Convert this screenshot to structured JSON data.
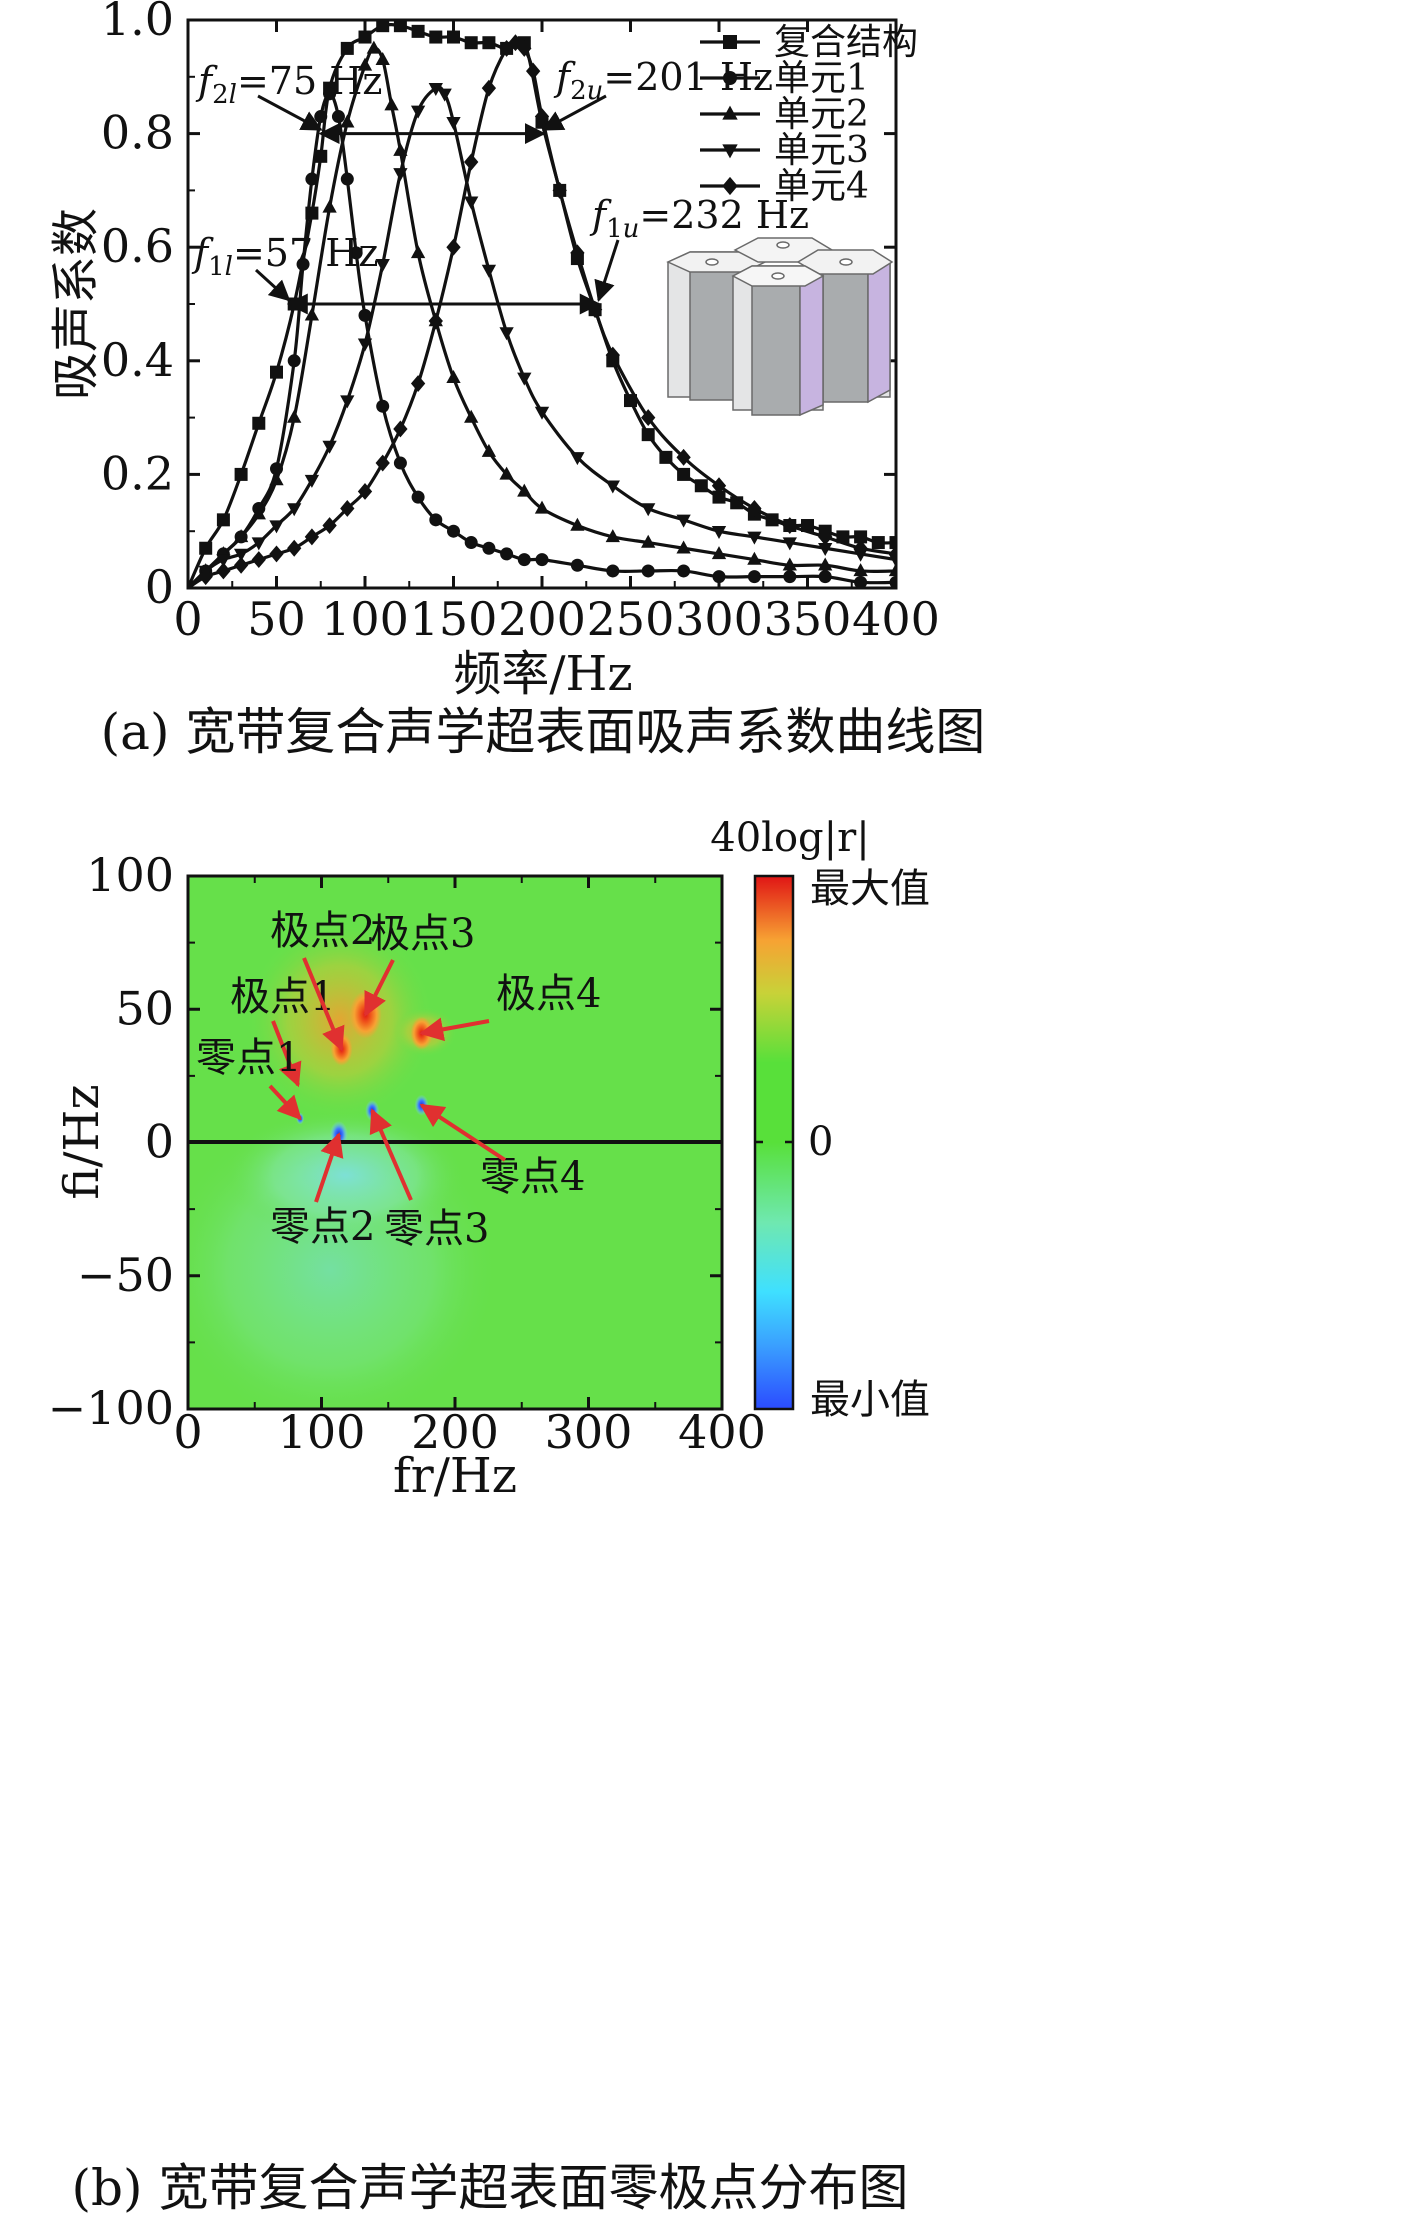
{
  "chart_data": [
    {
      "type": "line",
      "title": "",
      "caption": "(a) 宽带复合声学超表面吸声系数曲线图",
      "xlabel": "频率/Hz",
      "ylabel": "吸声系数",
      "xlim": [
        0,
        400
      ],
      "ylim": [
        0,
        1.0
      ],
      "x_ticks": [
        "0",
        "50",
        "100",
        "150",
        "200",
        "250",
        "300",
        "350",
        "400"
      ],
      "y_ticks": [
        "0",
        "0.2",
        "0.4",
        "0.6",
        "0.8",
        "1.0"
      ],
      "legend_position": "top-right",
      "series": [
        {
          "name": "复合结构",
          "marker": "square",
          "x": [
            0,
            10,
            20,
            30,
            40,
            50,
            60,
            70,
            75,
            80,
            90,
            100,
            110,
            120,
            130,
            140,
            150,
            160,
            170,
            180,
            190,
            200,
            210,
            220,
            230,
            240,
            250,
            260,
            270,
            280,
            290,
            300,
            310,
            320,
            330,
            340,
            350,
            360,
            370,
            380,
            390,
            400
          ],
          "y": [
            0,
            0.07,
            0.12,
            0.2,
            0.29,
            0.38,
            0.5,
            0.66,
            0.76,
            0.88,
            0.95,
            0.97,
            0.99,
            0.99,
            0.98,
            0.97,
            0.97,
            0.96,
            0.96,
            0.95,
            0.96,
            0.82,
            0.7,
            0.58,
            0.49,
            0.4,
            0.33,
            0.27,
            0.23,
            0.2,
            0.18,
            0.16,
            0.15,
            0.13,
            0.12,
            0.11,
            0.11,
            0.1,
            0.09,
            0.09,
            0.08,
            0.08
          ]
        },
        {
          "name": "单元1",
          "marker": "circle",
          "x": [
            0,
            10,
            20,
            30,
            40,
            50,
            60,
            65,
            70,
            75,
            80,
            85,
            90,
            95,
            100,
            110,
            120,
            130,
            140,
            150,
            160,
            170,
            180,
            190,
            200,
            220,
            240,
            260,
            280,
            300,
            320,
            340,
            360,
            380,
            400
          ],
          "y": [
            0,
            0.03,
            0.06,
            0.09,
            0.14,
            0.21,
            0.4,
            0.57,
            0.72,
            0.83,
            0.87,
            0.83,
            0.72,
            0.59,
            0.48,
            0.32,
            0.22,
            0.16,
            0.12,
            0.1,
            0.08,
            0.07,
            0.06,
            0.05,
            0.05,
            0.04,
            0.03,
            0.03,
            0.03,
            0.02,
            0.02,
            0.02,
            0.02,
            0.01,
            0.01
          ]
        },
        {
          "name": "单元2",
          "marker": "triangle-up",
          "x": [
            0,
            10,
            20,
            30,
            40,
            50,
            60,
            70,
            80,
            90,
            100,
            105,
            110,
            115,
            120,
            130,
            140,
            150,
            160,
            170,
            180,
            190,
            200,
            220,
            240,
            260,
            280,
            300,
            320,
            340,
            360,
            380,
            400
          ],
          "y": [
            0,
            0.03,
            0.06,
            0.09,
            0.13,
            0.19,
            0.3,
            0.48,
            0.67,
            0.82,
            0.92,
            0.95,
            0.93,
            0.85,
            0.77,
            0.59,
            0.47,
            0.37,
            0.3,
            0.24,
            0.2,
            0.17,
            0.14,
            0.11,
            0.09,
            0.08,
            0.07,
            0.06,
            0.05,
            0.04,
            0.04,
            0.03,
            0.03
          ]
        },
        {
          "name": "单元3",
          "marker": "triangle-down",
          "x": [
            0,
            10,
            20,
            30,
            40,
            50,
            60,
            70,
            80,
            90,
            100,
            110,
            120,
            130,
            140,
            145,
            150,
            160,
            170,
            180,
            190,
            200,
            220,
            240,
            260,
            280,
            300,
            320,
            340,
            360,
            380,
            400
          ],
          "y": [
            0,
            0.03,
            0.05,
            0.06,
            0.08,
            0.11,
            0.14,
            0.19,
            0.25,
            0.33,
            0.43,
            0.57,
            0.73,
            0.84,
            0.88,
            0.87,
            0.82,
            0.68,
            0.56,
            0.45,
            0.37,
            0.31,
            0.23,
            0.18,
            0.14,
            0.12,
            0.1,
            0.09,
            0.08,
            0.07,
            0.06,
            0.05
          ]
        },
        {
          "name": "单元4",
          "marker": "diamond",
          "x": [
            0,
            10,
            20,
            30,
            40,
            50,
            60,
            70,
            80,
            90,
            100,
            110,
            120,
            130,
            140,
            150,
            160,
            170,
            180,
            185,
            190,
            195,
            200,
            210,
            220,
            230,
            240,
            260,
            280,
            300,
            320,
            340,
            360,
            380,
            400
          ],
          "y": [
            0,
            0.02,
            0.03,
            0.04,
            0.05,
            0.06,
            0.07,
            0.09,
            0.11,
            0.14,
            0.17,
            0.22,
            0.28,
            0.36,
            0.47,
            0.6,
            0.75,
            0.88,
            0.95,
            0.96,
            0.95,
            0.91,
            0.83,
            0.7,
            0.59,
            0.49,
            0.41,
            0.3,
            0.23,
            0.18,
            0.14,
            0.11,
            0.09,
            0.07,
            0.06
          ]
        }
      ],
      "annotations": {
        "f2l": {
          "name": "f2l",
          "text": "=75 Hz",
          "value_hz": 75,
          "level": 0.8
        },
        "f2u": {
          "name": "f2u",
          "text": "=201 Hz",
          "value_hz": 201,
          "level": 0.8
        },
        "f1l": {
          "name": "f1l",
          "text": "=57 Hz",
          "value_hz": 57,
          "level": 0.5
        },
        "f1u": {
          "name": "f1u",
          "text": "=232 Hz",
          "value_hz": 232,
          "level": 0.5
        }
      }
    },
    {
      "type": "heatmap",
      "title": "",
      "caption": "(b) 宽带复合声学超表面零极点分布图",
      "xlabel": "fr/Hz",
      "ylabel": "fi/Hz",
      "xlim": [
        0,
        400
      ],
      "ylim": [
        -100,
        100
      ],
      "x_ticks": [
        "0",
        "100",
        "200",
        "300",
        "400"
      ],
      "y_ticks": [
        "100",
        "50",
        "0",
        "−50",
        "−100"
      ],
      "colorbar": {
        "title": "40log|r|",
        "max_label": "最大值",
        "mid_label": "0",
        "min_label": "最小值",
        "colors": [
          "#2b4bff",
          "#3fd0ff",
          "#6fe8b0",
          "#58e03a",
          "#a8d23a",
          "#f7a233",
          "#f04a1c",
          "#e01515"
        ]
      },
      "background_color": "#66e04a",
      "poles": [
        {
          "label": "极点1",
          "fr": 84,
          "fi": 9
        },
        {
          "label": "极点2",
          "fr": 115,
          "fi": 35
        },
        {
          "label": "极点3",
          "fr": 133,
          "fi": 48
        },
        {
          "label": "极点4",
          "fr": 175,
          "fi": 41
        }
      ],
      "zeros": [
        {
          "label": "零点1",
          "fr": 84,
          "fi": 9
        },
        {
          "label": "零点2",
          "fr": 113,
          "fi": 3
        },
        {
          "label": "零点3",
          "fr": 138,
          "fi": 12
        },
        {
          "label": "零点4",
          "fr": 175,
          "fi": 14
        }
      ]
    }
  ]
}
